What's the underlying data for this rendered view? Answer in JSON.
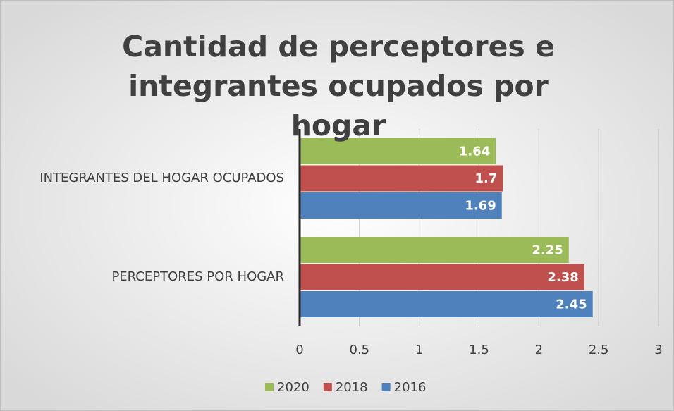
{
  "chart_data": {
    "type": "bar",
    "orientation": "horizontal",
    "title": "Cantidad de perceptores e integrantes ocupados por hogar",
    "categories": [
      "INTEGRANTES DEL HOGAR OCUPADOS",
      "PERCEPTORES POR HOGAR"
    ],
    "series": [
      {
        "name": "2020",
        "color": "#9bbb59",
        "values": [
          1.64,
          2.25
        ]
      },
      {
        "name": "2018",
        "color": "#c0504d",
        "values": [
          1.7,
          2.38
        ]
      },
      {
        "name": "2016",
        "color": "#4f81bd",
        "values": [
          1.69,
          2.45
        ]
      }
    ],
    "xlim": [
      0,
      3
    ],
    "xticks": [
      0,
      0.5,
      1,
      1.5,
      2,
      2.5,
      3
    ],
    "grid": true,
    "legend": "bottom"
  }
}
